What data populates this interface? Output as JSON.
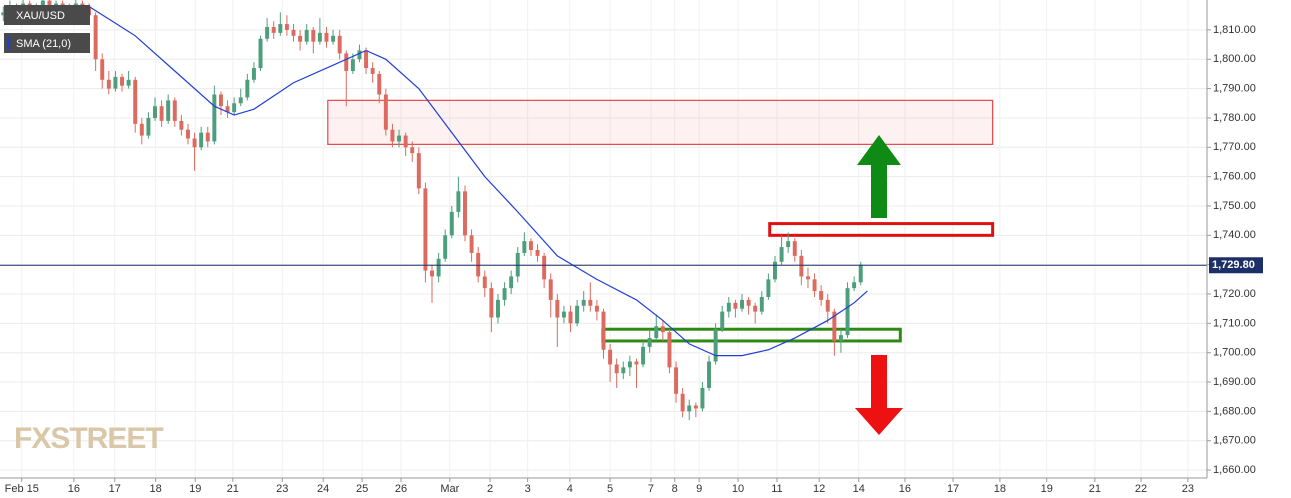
{
  "chart_data": {
    "type": "candlestick",
    "symbol": "XAU/USD",
    "up_color": "#4c9e7c",
    "down_color": "#dd6a5e",
    "ohlc": [
      [
        1815,
        1818,
        1813,
        1816
      ],
      [
        1816,
        1820,
        1815,
        1818
      ],
      [
        1818,
        1819,
        1815,
        1817
      ],
      [
        1817,
        1821,
        1816,
        1819
      ],
      [
        1819,
        1820,
        1814,
        1816
      ],
      [
        1816,
        1819,
        1815,
        1818
      ],
      [
        1818,
        1822,
        1817,
        1820
      ],
      [
        1820,
        1821,
        1815,
        1817
      ],
      [
        1817,
        1820,
        1816,
        1819
      ],
      [
        1819,
        1820,
        1816,
        1818
      ],
      [
        1818,
        1819,
        1815,
        1817
      ],
      [
        1817,
        1821,
        1816,
        1819
      ],
      [
        1819,
        1820,
        1816,
        1818
      ],
      [
        1818,
        1819,
        1812,
        1815
      ],
      [
        1815,
        1816,
        1796,
        1800
      ],
      [
        1800,
        1802,
        1790,
        1793
      ],
      [
        1793,
        1796,
        1788,
        1790
      ],
      [
        1790,
        1796,
        1789,
        1794
      ],
      [
        1794,
        1795,
        1789,
        1791
      ],
      [
        1791,
        1796,
        1790,
        1793
      ],
      [
        1793,
        1794,
        1775,
        1778
      ],
      [
        1778,
        1780,
        1771,
        1774
      ],
      [
        1774,
        1782,
        1773,
        1780
      ],
      [
        1780,
        1787,
        1779,
        1784
      ],
      [
        1784,
        1786,
        1777,
        1779
      ],
      [
        1779,
        1788,
        1778,
        1786
      ],
      [
        1786,
        1787,
        1777,
        1779
      ],
      [
        1779,
        1781,
        1774,
        1776
      ],
      [
        1776,
        1778,
        1771,
        1773
      ],
      [
        1773,
        1775,
        1762,
        1770
      ],
      [
        1770,
        1777,
        1769,
        1775
      ],
      [
        1775,
        1777,
        1770,
        1772
      ],
      [
        1772,
        1791,
        1771,
        1788
      ],
      [
        1788,
        1789,
        1781,
        1784
      ],
      [
        1784,
        1786,
        1780,
        1782
      ],
      [
        1782,
        1787,
        1781,
        1785
      ],
      [
        1785,
        1790,
        1784,
        1787
      ],
      [
        1787,
        1795,
        1786,
        1793
      ],
      [
        1793,
        1799,
        1792,
        1797
      ],
      [
        1797,
        1808,
        1796,
        1807
      ],
      [
        1807,
        1814,
        1806,
        1811
      ],
      [
        1811,
        1813,
        1807,
        1809
      ],
      [
        1809,
        1816,
        1808,
        1812
      ],
      [
        1812,
        1815,
        1808,
        1810
      ],
      [
        1810,
        1812,
        1806,
        1808
      ],
      [
        1808,
        1810,
        1803,
        1806
      ],
      [
        1806,
        1812,
        1805,
        1810
      ],
      [
        1810,
        1811,
        1802,
        1806
      ],
      [
        1806,
        1814,
        1805,
        1809
      ],
      [
        1809,
        1811,
        1804,
        1806
      ],
      [
        1806,
        1810,
        1805,
        1808
      ],
      [
        1808,
        1810,
        1800,
        1802
      ],
      [
        1802,
        1803,
        1784,
        1796
      ],
      [
        1796,
        1802,
        1795,
        1800
      ],
      [
        1800,
        1805,
        1799,
        1803
      ],
      [
        1803,
        1804,
        1795,
        1797
      ],
      [
        1797,
        1799,
        1792,
        1795
      ],
      [
        1795,
        1796,
        1785,
        1788
      ],
      [
        1788,
        1790,
        1774,
        1776
      ],
      [
        1776,
        1778,
        1770,
        1772
      ],
      [
        1772,
        1776,
        1770,
        1774
      ],
      [
        1774,
        1775,
        1767,
        1770
      ],
      [
        1770,
        1772,
        1765,
        1768
      ],
      [
        1768,
        1770,
        1754,
        1756
      ],
      [
        1756,
        1758,
        1724,
        1728
      ],
      [
        1728,
        1730,
        1717,
        1726
      ],
      [
        1726,
        1734,
        1724,
        1732
      ],
      [
        1732,
        1742,
        1731,
        1740
      ],
      [
        1740,
        1750,
        1739,
        1748
      ],
      [
        1748,
        1760,
        1746,
        1755
      ],
      [
        1755,
        1757,
        1738,
        1740
      ],
      [
        1740,
        1742,
        1731,
        1734
      ],
      [
        1734,
        1736,
        1724,
        1726
      ],
      [
        1726,
        1728,
        1719,
        1722
      ],
      [
        1722,
        1724,
        1707,
        1712
      ],
      [
        1712,
        1720,
        1710,
        1718
      ],
      [
        1718,
        1724,
        1716,
        1722
      ],
      [
        1722,
        1728,
        1720,
        1726
      ],
      [
        1726,
        1736,
        1724,
        1734
      ],
      [
        1734,
        1741,
        1733,
        1738
      ],
      [
        1738,
        1739,
        1733,
        1735
      ],
      [
        1735,
        1737,
        1731,
        1733
      ],
      [
        1733,
        1734,
        1722,
        1725
      ],
      [
        1725,
        1727,
        1712,
        1718
      ],
      [
        1718,
        1720,
        1702,
        1712
      ],
      [
        1712,
        1716,
        1710,
        1714
      ],
      [
        1714,
        1716,
        1707,
        1710
      ],
      [
        1710,
        1718,
        1709,
        1716
      ],
      [
        1716,
        1721,
        1714,
        1718
      ],
      [
        1718,
        1724,
        1714,
        1716
      ],
      [
        1716,
        1718,
        1711,
        1714
      ],
      [
        1714,
        1715,
        1698,
        1701
      ],
      [
        1701,
        1703,
        1690,
        1696
      ],
      [
        1696,
        1698,
        1688,
        1693
      ],
      [
        1693,
        1697,
        1691,
        1695
      ],
      [
        1695,
        1699,
        1692,
        1697
      ],
      [
        1697,
        1698,
        1688,
        1696
      ],
      [
        1696,
        1704,
        1695,
        1702
      ],
      [
        1702,
        1708,
        1700,
        1705
      ],
      [
        1705,
        1713,
        1704,
        1709
      ],
      [
        1709,
        1711,
        1704,
        1707
      ],
      [
        1707,
        1708,
        1693,
        1695
      ],
      [
        1695,
        1697,
        1683,
        1686
      ],
      [
        1686,
        1688,
        1678,
        1680
      ],
      [
        1680,
        1684,
        1677,
        1682
      ],
      [
        1682,
        1683,
        1678,
        1681
      ],
      [
        1681,
        1690,
        1680,
        1688
      ],
      [
        1688,
        1699,
        1687,
        1697
      ],
      [
        1697,
        1710,
        1696,
        1708
      ],
      [
        1708,
        1716,
        1707,
        1714
      ],
      [
        1714,
        1719,
        1712,
        1717
      ],
      [
        1717,
        1718,
        1712,
        1715
      ],
      [
        1715,
        1720,
        1714,
        1718
      ],
      [
        1718,
        1719,
        1713,
        1716
      ],
      [
        1716,
        1717,
        1710,
        1714
      ],
      [
        1714,
        1721,
        1713,
        1719
      ],
      [
        1719,
        1727,
        1718,
        1725
      ],
      [
        1725,
        1733,
        1724,
        1731
      ],
      [
        1731,
        1740,
        1730,
        1736
      ],
      [
        1736,
        1741,
        1734,
        1738
      ],
      [
        1738,
        1739,
        1731,
        1733
      ],
      [
        1733,
        1735,
        1723,
        1726
      ],
      [
        1726,
        1729,
        1722,
        1725
      ],
      [
        1725,
        1727,
        1719,
        1721
      ],
      [
        1721,
        1723,
        1716,
        1718
      ],
      [
        1718,
        1720,
        1710,
        1714
      ],
      [
        1714,
        1715,
        1699,
        1704
      ],
      [
        1704,
        1708,
        1700,
        1706
      ],
      [
        1706,
        1724,
        1705,
        1722
      ],
      [
        1722,
        1726,
        1721,
        1724
      ],
      [
        1724,
        1731,
        1723,
        1730
      ]
    ],
    "sma": {
      "name": "SMA (21,0)",
      "color": "#1f3fd6",
      "x": [
        13,
        20,
        26,
        32,
        35,
        38,
        44,
        50,
        55,
        58,
        63,
        68,
        73,
        78,
        84,
        90,
        96,
        100,
        104,
        108,
        112,
        116,
        120,
        125,
        129,
        131
      ],
      "values": [
        1818,
        1808,
        1796,
        1784,
        1781,
        1783,
        1792,
        1798,
        1803,
        1800,
        1790,
        1775,
        1760,
        1748,
        1733,
        1725,
        1718,
        1711,
        1703,
        1699,
        1699,
        1701,
        1705,
        1711,
        1717,
        1721
      ]
    },
    "last_price": {
      "value": 1729.8,
      "label": "1,729.80"
    },
    "zones": [
      {
        "color": "#e8474a",
        "style": "filled",
        "x": [
          49.2,
          150
        ],
        "y": [
          1771,
          1786
        ]
      },
      {
        "color": "#e01010",
        "style": "outline",
        "x": [
          116.2,
          150
        ],
        "y": [
          1740,
          1744
        ]
      },
      {
        "color": "#2e8a12",
        "style": "outline",
        "x": [
          90.9,
          136
        ],
        "y": [
          1704,
          1708
        ]
      }
    ],
    "xlim": [
      -0.5,
      182.5
    ],
    "ylim": [
      1657.3,
      1820.2
    ],
    "yticks": [
      {
        "value": 1660,
        "label": "1,660.00"
      },
      {
        "value": 1670,
        "label": "1,670.00"
      },
      {
        "value": 1680,
        "label": "1,680.00"
      },
      {
        "value": 1690,
        "label": "1,690.00"
      },
      {
        "value": 1700,
        "label": "1,700.00"
      },
      {
        "value": 1710,
        "label": "1,710.00"
      },
      {
        "value": 1720,
        "label": "1,720.00"
      },
      {
        "value": 1730,
        "label": "1,730.00"
      },
      {
        "value": 1740,
        "label": "1,740.00"
      },
      {
        "value": 1750,
        "label": "1,750.00"
      },
      {
        "value": 1760,
        "label": "1,760.00"
      },
      {
        "value": 1770,
        "label": "1,770.00"
      },
      {
        "value": 1780,
        "label": "1,780.00"
      },
      {
        "value": 1790,
        "label": "1,790.00"
      },
      {
        "value": 1800,
        "label": "1,800.00"
      },
      {
        "value": 1810,
        "label": "1,810.00"
      }
    ],
    "xticks": [
      {
        "value": 2.8,
        "label": "Feb 15"
      },
      {
        "value": 10.7,
        "label": "16"
      },
      {
        "value": 16.9,
        "label": "17"
      },
      {
        "value": 23.1,
        "label": "18"
      },
      {
        "value": 29.1,
        "label": "19"
      },
      {
        "value": 34.8,
        "label": "21"
      },
      {
        "value": 42.3,
        "label": "23"
      },
      {
        "value": 48.5,
        "label": "24"
      },
      {
        "value": 54.4,
        "label": "25"
      },
      {
        "value": 60.3,
        "label": "26"
      },
      {
        "value": 67.7,
        "label": "Mar"
      },
      {
        "value": 73.8,
        "label": "2"
      },
      {
        "value": 79.5,
        "label": "3"
      },
      {
        "value": 85.9,
        "label": "4"
      },
      {
        "value": 92,
        "label": "5"
      },
      {
        "value": 98.2,
        "label": "7"
      },
      {
        "value": 101.8,
        "label": "8"
      },
      {
        "value": 105.5,
        "label": "9"
      },
      {
        "value": 111.4,
        "label": "10"
      },
      {
        "value": 117.3,
        "label": "11"
      },
      {
        "value": 123.7,
        "label": "12"
      },
      {
        "value": 129.7,
        "label": "14"
      },
      {
        "value": 136.7,
        "label": "16"
      },
      {
        "value": 144,
        "label": "17"
      },
      {
        "value": 151.1,
        "label": "18"
      },
      {
        "value": 158.2,
        "label": "19"
      },
      {
        "value": 165.5,
        "label": "21"
      },
      {
        "value": 172.5,
        "label": "22"
      },
      {
        "value": 179.6,
        "label": "23"
      }
    ],
    "grid": true
  },
  "watermark": "FXSTREET"
}
